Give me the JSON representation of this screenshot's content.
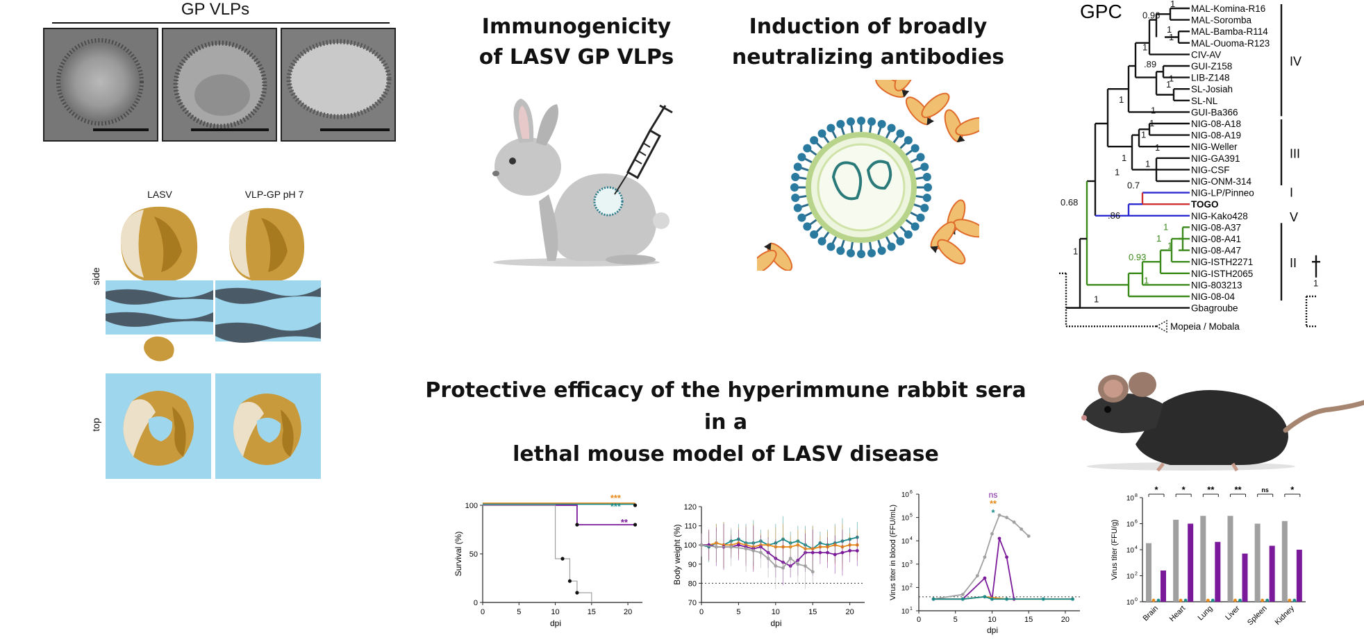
{
  "gp_vlps": {
    "title": "GP VLPs"
  },
  "structure": {
    "col1": "LASV",
    "col2": "VLP-GP pH 7",
    "row1": "side",
    "row2": "top"
  },
  "headings": {
    "immuno_l1": "Immunogenicity",
    "immuno_l2": "of LASV GP VLPs",
    "induction_l1": "Induction of broadly",
    "induction_l2": "neutralizing antibodies",
    "protective_l1": "Protective efficacy of the hyperimmune rabbit sera in a",
    "protective_l2": "lethal mouse model of LASV disease"
  },
  "tree": {
    "title": "GPC",
    "taxa": [
      "MAL-Komina-R16",
      "MAL-Soromba",
      "MAL-Bamba-R114",
      "MAL-Ouoma-R123",
      "CIV-AV",
      "GUI-Z158",
      "LIB-Z148",
      "SL-Josiah",
      "SL-NL",
      "GUI-Ba366",
      "NIG-08-A18",
      "NIG-08-A19",
      "NIG-Weller",
      "NIG-GA391",
      "NIG-CSF",
      "NIG-ONM-314",
      "NIG-LP/Pinneo",
      "TOGO",
      "NIG-Kako428",
      "NIG-08-A37",
      "NIG-08-A41",
      "NIG-08-A47",
      "NIG-ISTH2271",
      "NIG-ISTH2065",
      "NIG-803213",
      "NIG-08-04",
      "Gbagroube",
      "Mopeia / Mobala"
    ],
    "lineages": [
      "IV",
      "III",
      "I",
      "V",
      "II"
    ],
    "support": [
      "1",
      "0.96",
      "1",
      "1",
      "1",
      ".89",
      "1",
      "1",
      "1",
      "1",
      "1",
      "1",
      "1",
      "1",
      "1",
      "0.7",
      ".86",
      "0.68",
      "1",
      "1",
      "1",
      "0.93",
      "1",
      "1",
      "1",
      "1",
      "1"
    ],
    "colors": {
      "black": "#111111",
      "blue": "#2a2ad0",
      "red": "#d03030",
      "green": "#3a8a1a"
    }
  },
  "colors": {
    "orange": "#e88a1a",
    "teal": "#1a8a8a",
    "purple": "#7a1a9a",
    "gray": "#a0a0a0"
  },
  "charts": {
    "survival": {
      "ylabel": "Survival (%)",
      "xlabel": "dpi",
      "yticks": [
        "0",
        "50",
        "100"
      ],
      "xticks": [
        "0",
        "5",
        "10",
        "15",
        "20"
      ],
      "sig": [
        "***",
        "***",
        "**"
      ]
    },
    "weight": {
      "ylabel": "Body weight (%)",
      "xlabel": "dpi",
      "yticks": [
        "70",
        "80",
        "90",
        "100",
        "110",
        "120"
      ],
      "xticks": [
        "0",
        "5",
        "10",
        "15",
        "20"
      ]
    },
    "blood": {
      "ylabel": "Virus titer in blood (FFU/mL)",
      "xlabel": "dpi",
      "yticks": [
        "10",
        "10",
        "10",
        "10",
        "10",
        "10"
      ],
      "yexp": [
        "1",
        "2",
        "3",
        "4",
        "5",
        "6"
      ],
      "xticks": [
        "0",
        "5",
        "10",
        "15",
        "20"
      ],
      "sig": [
        "ns",
        "**",
        "*"
      ]
    },
    "organ": {
      "ylabel": "Virus titer  (FFU/g)",
      "yticks": [
        "10",
        "10",
        "10",
        "10",
        "10"
      ],
      "yexp": [
        "0",
        "2",
        "4",
        "6",
        "8"
      ],
      "organs": [
        "Brain",
        "Heart",
        "Lung",
        "Liver",
        "Spleen",
        "Kidney"
      ],
      "sig": [
        "*",
        "*",
        "**",
        "**",
        "ns",
        "*"
      ]
    }
  },
  "chart_data": [
    {
      "type": "line",
      "xlabel": "dpi",
      "ylabel": "Survival (%)",
      "ylim": [
        0,
        100
      ],
      "xlim": [
        0,
        22
      ],
      "series": [
        {
          "values": [
            [
              0,
              100
            ],
            [
              21,
              100
            ]
          ],
          "color": "#e88a1a"
        },
        {
          "values": [
            [
              0,
              100
            ],
            [
              21,
              100
            ]
          ],
          "color": "#1a8a8a"
        },
        {
          "values": [
            [
              0,
              100
            ],
            [
              13,
              100
            ],
            [
              13,
              80
            ],
            [
              21,
              80
            ]
          ],
          "color": "#7a1a9a"
        },
        {
          "values": [
            [
              0,
              100
            ],
            [
              10,
              100
            ],
            [
              10,
              45
            ],
            [
              12,
              45
            ],
            [
              12,
              22
            ],
            [
              13,
              22
            ],
            [
              13,
              10
            ],
            [
              15,
              10
            ],
            [
              15,
              0
            ]
          ],
          "color": "#a0a0a0"
        }
      ]
    },
    {
      "type": "line",
      "xlabel": "dpi",
      "ylabel": "Body weight (%)",
      "ylim": [
        70,
        120
      ],
      "xlim": [
        0,
        22
      ],
      "series": [
        {
          "color": "#1a8a8a",
          "x": [
            0,
            1,
            2,
            3,
            4,
            5,
            6,
            7,
            8,
            9,
            10,
            11,
            12,
            13,
            14,
            15,
            16,
            17,
            18,
            19,
            20,
            21
          ],
          "values": [
            100,
            99,
            101,
            100,
            102,
            103,
            101,
            101,
            102,
            100,
            101,
            103,
            101,
            102,
            100,
            98,
            101,
            100,
            101,
            102,
            103,
            104
          ]
        },
        {
          "color": "#e88a1a",
          "x": [
            0,
            1,
            2,
            3,
            4,
            5,
            6,
            7,
            8,
            9,
            10,
            11,
            12,
            13,
            14,
            15,
            16,
            17,
            18,
            19,
            20,
            21
          ],
          "values": [
            100,
            100,
            101,
            100,
            100,
            101,
            100,
            99,
            100,
            100,
            99,
            99,
            99,
            100,
            98,
            98,
            99,
            99,
            100,
            99,
            100,
            100
          ]
        },
        {
          "color": "#7a1a9a",
          "x": [
            0,
            1,
            2,
            3,
            4,
            5,
            6,
            7,
            8,
            9,
            10,
            11,
            12,
            13,
            14,
            15,
            16,
            17,
            18,
            19,
            20,
            21
          ],
          "values": [
            100,
            100,
            99,
            99,
            99,
            100,
            99,
            98,
            99,
            96,
            93,
            91,
            89,
            92,
            96,
            96,
            96,
            96,
            95,
            96,
            97,
            97
          ]
        },
        {
          "color": "#a0a0a0",
          "x": [
            0,
            2,
            4,
            6,
            7,
            8,
            9,
            10,
            11,
            12,
            13,
            14,
            15
          ],
          "values": [
            100,
            99,
            99,
            98,
            97,
            96,
            93,
            89,
            88,
            93,
            90,
            89,
            86
          ]
        }
      ]
    },
    {
      "type": "line",
      "xlabel": "dpi",
      "ylabel": "Virus titer in blood (FFU/mL)",
      "ylim": [
        1,
        6
      ],
      "xlim": [
        0,
        22
      ],
      "series": [
        {
          "color": "#a0a0a0",
          "x": [
            2,
            6,
            8,
            9,
            10,
            11,
            12,
            13,
            14,
            15
          ],
          "values": [
            1.5,
            1.7,
            2.5,
            3.3,
            4.3,
            5.1,
            5.0,
            4.8,
            4.5,
            4.2
          ]
        },
        {
          "color": "#7a1a9a",
          "x": [
            2,
            6,
            9,
            10,
            11,
            12,
            13
          ],
          "values": [
            1.5,
            1.5,
            2.4,
            1.5,
            4.1,
            3.3,
            1.5
          ]
        },
        {
          "color": "#e88a1a",
          "x": [
            2,
            6,
            9,
            12,
            21
          ],
          "values": [
            1.5,
            1.5,
            1.6,
            1.5,
            1.5
          ]
        },
        {
          "color": "#1a8a8a",
          "x": [
            2,
            6,
            9,
            10,
            12,
            17,
            21
          ],
          "values": [
            1.5,
            1.5,
            1.6,
            1.5,
            1.5,
            1.5,
            1.5
          ]
        }
      ]
    },
    {
      "type": "bar",
      "ylabel": "Virus titer  (FFU/g)",
      "ylim": [
        0,
        8
      ],
      "categories": [
        "Brain",
        "Heart",
        "Lung",
        "Liver",
        "Spleen",
        "Kidney"
      ],
      "series": [
        {
          "color": "#a0a0a0",
          "values": [
            4.5,
            6.3,
            6.6,
            6.6,
            6.0,
            6.2
          ]
        },
        {
          "color": "#e88a1a",
          "values": [
            0,
            0,
            0,
            0,
            0,
            0
          ]
        },
        {
          "color": "#1a8a8a",
          "values": [
            0,
            0,
            0,
            0,
            0,
            0
          ]
        },
        {
          "color": "#7a1a9a",
          "values": [
            2.4,
            6.0,
            4.6,
            3.7,
            4.3,
            4.0
          ]
        }
      ]
    }
  ]
}
